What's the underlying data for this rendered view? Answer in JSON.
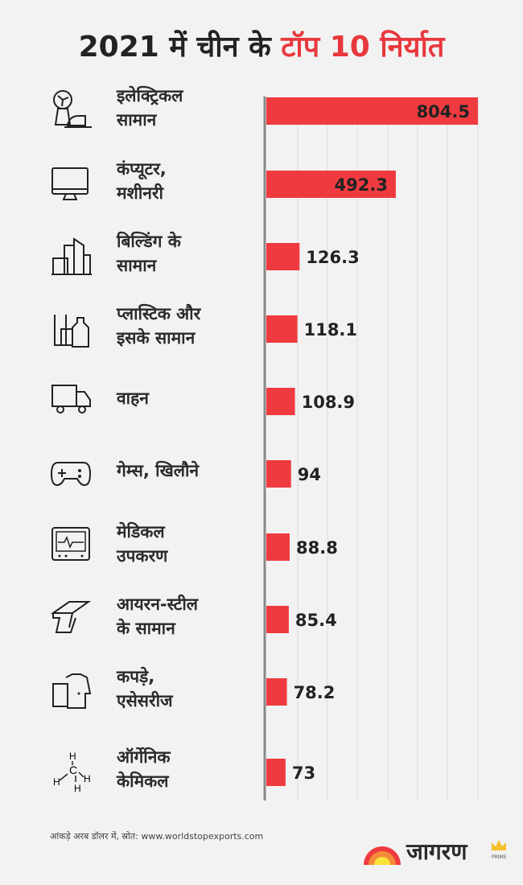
{
  "header": {
    "title_part1": "2021 में चीन के",
    "title_part2": "टॉप 10 निर्यात"
  },
  "colors": {
    "bar": "#ef3b3f",
    "title_accent": "#e8383d",
    "text": "#2b2b2b",
    "axis": "#888888",
    "background": "#f2f2f2"
  },
  "chart_data": {
    "type": "bar",
    "orientation": "horizontal",
    "title": "2021 में चीन के टॉप 10 निर्यात",
    "categories": [
      [
        "इलेक्ट्रिकल",
        "सामान"
      ],
      [
        "कंप्यूटर,",
        "मशीनरी"
      ],
      [
        "बिल्डिंग के",
        "सामान"
      ],
      [
        "प्लास्टिक और",
        "इसके सामान"
      ],
      [
        "वाहन"
      ],
      [
        "गेम्स, खिलौने"
      ],
      [
        "मेडिकल",
        "उपकरण"
      ],
      [
        "आयरन-स्टील",
        "के सामान"
      ],
      [
        "कपड़े,",
        "एसेसरीज"
      ],
      [
        "ऑर्गेनिक",
        "केमिकल"
      ]
    ],
    "icons": [
      "fan-iron-icon",
      "computer-monitor-icon",
      "buildings-icon",
      "plastic-bottles-icon",
      "delivery-truck-icon",
      "gamepad-icon",
      "medical-monitor-icon",
      "steel-beam-icon",
      "clothes-icon",
      "methane-molecule-icon"
    ],
    "values": [
      804.5,
      492.3,
      126.3,
      118.1,
      108.9,
      94,
      88.8,
      85.4,
      78.2,
      73
    ],
    "value_labels": [
      "804.5",
      "492.3",
      "126.3",
      "118.1",
      "108.9",
      "94",
      "88.8",
      "85.4",
      "78.2",
      "73"
    ],
    "xlim": [
      0,
      804.5
    ],
    "grid": true
  },
  "footer": {
    "note": "आंकड़े अरब डॉलर में, स्रोत: www.worldstopexports.com",
    "logo_text": "जागरण",
    "logo_sub": "PRIME"
  }
}
